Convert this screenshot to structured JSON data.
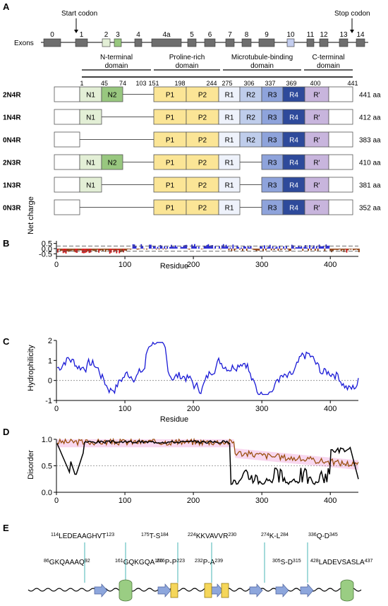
{
  "panels": {
    "a": "A",
    "b": "B",
    "c": "C",
    "d": "D",
    "e": "E"
  },
  "exons": {
    "row_label": "Exons",
    "start_codon": "Start codon",
    "stop_codon": "Stop codon",
    "labels": [
      "0",
      "1",
      "2",
      "3",
      "4",
      "4a",
      "5",
      "6",
      "7",
      "8",
      "9",
      "10",
      "11",
      "12",
      "13",
      "14"
    ],
    "highlight_colors": {
      "2": "#e3efd6",
      "3": "#98c77f",
      "10": "#c3cdee"
    },
    "default_color": "#6e6e6e"
  },
  "domains": [
    {
      "line1": "N-terminal",
      "line2": "domain"
    },
    {
      "line1": "Proline-rich",
      "line2": "domain"
    },
    {
      "line1": "Microtubule-binding",
      "line2": "domain"
    },
    {
      "line1": "C-terminal",
      "line2": "domain"
    }
  ],
  "positions": [
    "1",
    "45",
    "74",
    "103",
    "151",
    "198",
    "244",
    "275",
    "306",
    "337",
    "369",
    "400",
    "441"
  ],
  "segments": {
    "N1": {
      "label": "N1",
      "color": "#e3efd6"
    },
    "N2": {
      "label": "N2",
      "color": "#98c77f"
    },
    "P1": {
      "label": "P1",
      "color": "#fbe596"
    },
    "P2": {
      "label": "P2",
      "color": "#fbe596"
    },
    "R1": {
      "label": "R1",
      "color": "#eef2fb"
    },
    "R2": {
      "label": "R2",
      "color": "#bfcdeb"
    },
    "R3": {
      "label": "R3",
      "color": "#8ea3db"
    },
    "R4": {
      "label": "R4",
      "color": "#2e4a9b"
    },
    "Rp": {
      "label": "R'",
      "color": "#c8b5dd"
    }
  },
  "isoforms": [
    {
      "name": "2N4R",
      "length": "441 aa"
    },
    {
      "name": "1N4R",
      "length": "412 aa"
    },
    {
      "name": "0N4R",
      "length": "383 aa"
    },
    {
      "name": "2N3R",
      "length": "410 aa"
    },
    {
      "name": "1N3R",
      "length": "381 aa"
    },
    {
      "name": "0N3R",
      "length": "352 aa"
    }
  ],
  "chart_b": {
    "ylabel": "Net charge",
    "xlabel": "Residue",
    "yticks": [
      "0.5",
      "0.0",
      "-0.5"
    ],
    "xticks": [
      "0",
      "100",
      "200",
      "300",
      "400"
    ],
    "xlim": [
      0,
      441
    ],
    "ylim": [
      -0.75,
      0.75
    ],
    "threshold_lines": [
      0.25,
      -0.25
    ],
    "positive_color": "#1f1fd0",
    "negative_color": "#8b3a0a",
    "strong_negative_color": "#d01010"
  },
  "chart_c": {
    "ylabel": "Hydrophilicity",
    "xlabel": "Residue",
    "yticks": [
      "2",
      "1",
      "0",
      "-1"
    ],
    "xticks": [
      "0",
      "100",
      "200",
      "300",
      "400"
    ],
    "xlim": [
      0,
      441
    ],
    "ylim": [
      -1,
      2
    ],
    "line_color": "#1a1ad6"
  },
  "chart_d": {
    "ylabel": "Disorder",
    "yticks": [
      "1.0",
      "0.5",
      "0.0"
    ],
    "xticks": [
      "0",
      "100",
      "200",
      "300",
      "400"
    ],
    "xlim": [
      0,
      441
    ],
    "ylim": [
      0,
      1
    ],
    "threshold": 0.5,
    "line1_color": "#000000",
    "line2_color": "#9a4f10",
    "band_color": "#f5c6e8"
  },
  "motifs": {
    "upper": [
      {
        "pre": "114",
        "seq": "LEDEAAGHVT",
        "post": "123"
      },
      {
        "pre": "175",
        "seq": "T-S",
        "post": "184"
      },
      {
        "pre": "224",
        "seq": "KKVAVVR",
        "post": "230"
      },
      {
        "pre": "274",
        "seq": "K-L",
        "post": "284"
      },
      {
        "pre": "336",
        "seq": "Q-D",
        "post": "345"
      }
    ],
    "lower": [
      {
        "pre": "86",
        "seq": "GKQAAAQ",
        "post": "92"
      },
      {
        "pre": "161",
        "seq": "GQKGQA",
        "post": "166"
      },
      {
        "pre": "216",
        "seq": "P-P",
        "post": "223"
      },
      {
        "pre": "232",
        "seq": "P-A",
        "post": "239"
      },
      {
        "pre": "305",
        "seq": "S-D",
        "post": "315"
      },
      {
        "pre": "428",
        "seq": "LADEVSASLA",
        "post": "437"
      }
    ],
    "helix_color": "#9acd83",
    "strand_color": "#8da6dc",
    "box_color": "#f5d65a",
    "leader_color": "#1aa3a3"
  }
}
